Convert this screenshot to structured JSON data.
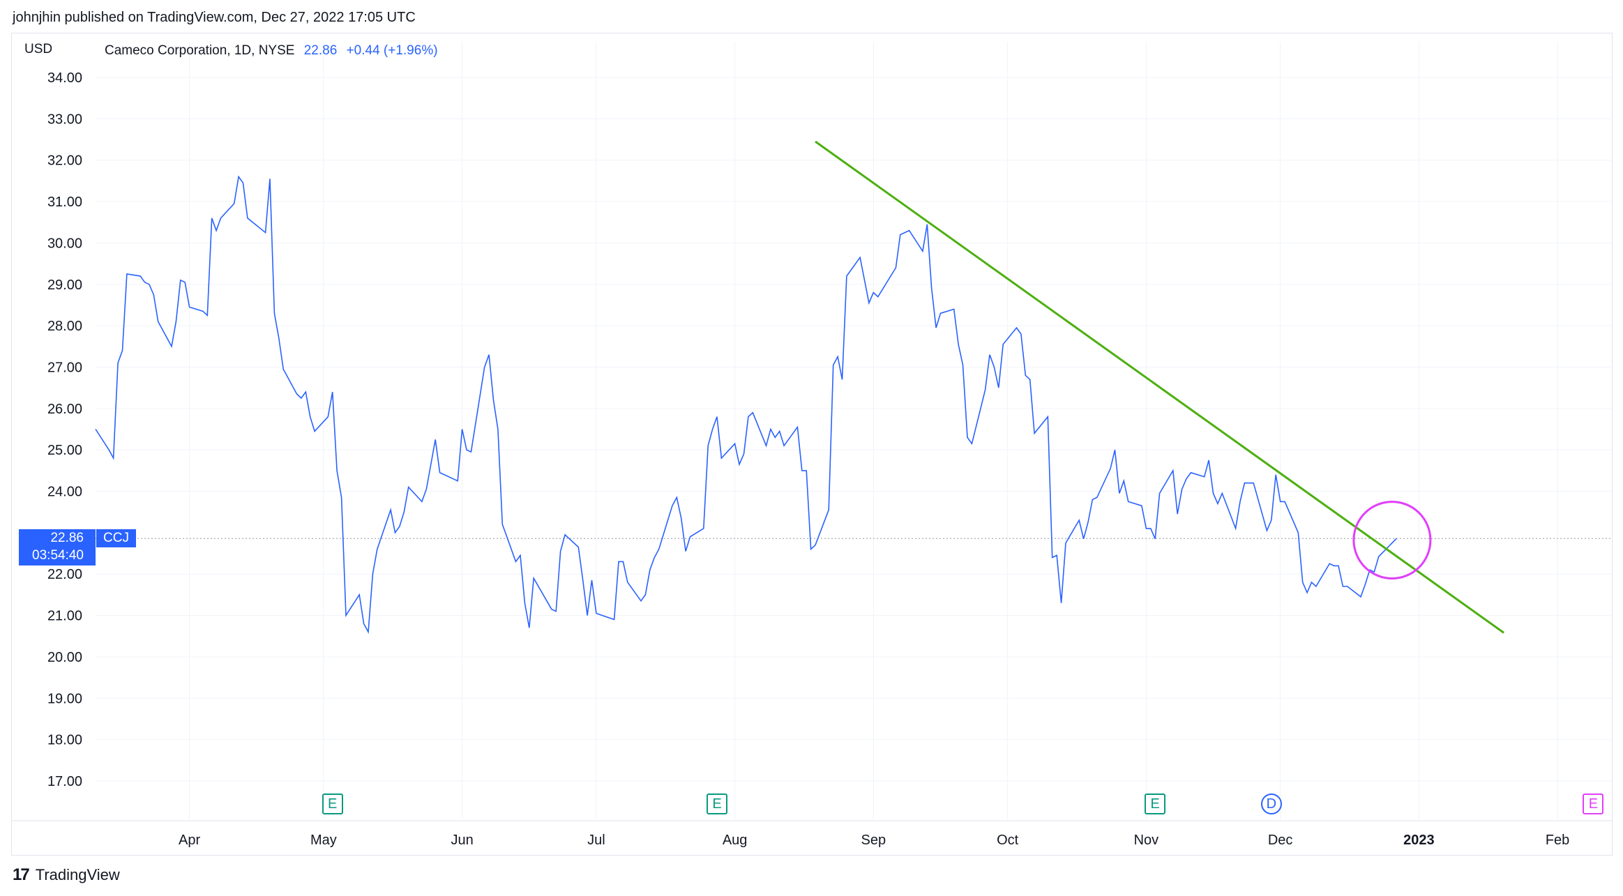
{
  "publisher": "johnjhin published on TradingView.com, Dec 27, 2022 17:05 UTC",
  "currency": "USD",
  "legend": {
    "name": "Cameco Corporation, 1D, NYSE",
    "value": "22.86",
    "change": "+0.44 (+1.96%)"
  },
  "price_tag": {
    "price": "22.86",
    "countdown": "03:54:40",
    "symbol": "CCJ"
  },
  "brand": {
    "text": "TradingView"
  },
  "events": [
    {
      "label": "E",
      "kind": "earnings",
      "date": "May 3"
    },
    {
      "label": "E",
      "kind": "earnings",
      "date": "Jul 28"
    },
    {
      "label": "E",
      "kind": "earnings",
      "date": "Nov 3"
    },
    {
      "label": "D",
      "kind": "dividend",
      "date": "Nov 29"
    },
    {
      "label": "E",
      "kind": "earnings-upcoming",
      "date": "Feb 9"
    }
  ],
  "colors": {
    "line": "#2962ff",
    "trendline": "#4caf10",
    "circle": "#e040fb",
    "grid": "#f0f3fa",
    "earnings": "#089981",
    "dividend": "#2962ff"
  },
  "chart_data": {
    "type": "line",
    "title": "Cameco Corporation, 1D, NYSE",
    "ylabel": "USD",
    "ylim": [
      16.4,
      34.6
    ],
    "yticks": [
      "34.00",
      "33.00",
      "32.00",
      "31.00",
      "30.00",
      "29.00",
      "28.00",
      "27.00",
      "26.00",
      "25.00",
      "24.00",
      "22.00",
      "21.00",
      "20.00",
      "19.00",
      "18.00",
      "17.00"
    ],
    "xticks": [
      {
        "label": "Apr",
        "date": "2022-04-01"
      },
      {
        "label": "May",
        "date": "2022-05-01"
      },
      {
        "label": "Jun",
        "date": "2022-06-01"
      },
      {
        "label": "Jul",
        "date": "2022-07-01"
      },
      {
        "label": "Aug",
        "date": "2022-08-01"
      },
      {
        "label": "Sep",
        "date": "2022-09-01"
      },
      {
        "label": "Oct",
        "date": "2022-10-01"
      },
      {
        "label": "Nov",
        "date": "2022-11-01"
      },
      {
        "label": "Dec",
        "date": "2022-12-01"
      },
      {
        "label": "2023",
        "date": "2023-01-01"
      },
      {
        "label": "Feb",
        "date": "2023-02-01"
      }
    ],
    "xlim": [
      "2022-03-11",
      "2023-02-13"
    ],
    "series": [
      {
        "x": [
          "2022-03-11",
          "2022-03-14",
          "2022-03-15",
          "2022-03-16",
          "2022-03-17",
          "2022-03-18",
          "2022-03-21",
          "2022-03-22",
          "2022-03-23",
          "2022-03-24",
          "2022-03-25",
          "2022-03-28",
          "2022-03-29",
          "2022-03-30",
          "2022-03-31",
          "2022-04-01",
          "2022-04-04",
          "2022-04-05",
          "2022-04-06",
          "2022-04-07",
          "2022-04-08",
          "2022-04-11",
          "2022-04-12",
          "2022-04-13",
          "2022-04-14",
          "2022-04-18",
          "2022-04-19",
          "2022-04-20",
          "2022-04-21",
          "2022-04-22",
          "2022-04-25",
          "2022-04-26",
          "2022-04-27",
          "2022-04-28",
          "2022-04-29",
          "2022-05-02",
          "2022-05-03",
          "2022-05-04",
          "2022-05-05",
          "2022-05-06",
          "2022-05-09",
          "2022-05-10",
          "2022-05-11",
          "2022-05-12",
          "2022-05-13",
          "2022-05-16",
          "2022-05-17",
          "2022-05-18",
          "2022-05-19",
          "2022-05-20",
          "2022-05-23",
          "2022-05-24",
          "2022-05-25",
          "2022-05-26",
          "2022-05-27",
          "2022-05-31",
          "2022-06-01",
          "2022-06-02",
          "2022-06-03",
          "2022-06-06",
          "2022-06-07",
          "2022-06-08",
          "2022-06-09",
          "2022-06-10",
          "2022-06-13",
          "2022-06-14",
          "2022-06-15",
          "2022-06-16",
          "2022-06-17",
          "2022-06-21",
          "2022-06-22",
          "2022-06-23",
          "2022-06-24",
          "2022-06-27",
          "2022-06-28",
          "2022-06-29",
          "2022-06-30",
          "2022-07-01",
          "2022-07-05",
          "2022-07-06",
          "2022-07-07",
          "2022-07-08",
          "2022-07-11",
          "2022-07-12",
          "2022-07-13",
          "2022-07-14",
          "2022-07-15",
          "2022-07-18",
          "2022-07-19",
          "2022-07-20",
          "2022-07-21",
          "2022-07-22",
          "2022-07-25",
          "2022-07-26",
          "2022-07-27",
          "2022-07-28",
          "2022-07-29",
          "2022-08-01",
          "2022-08-02",
          "2022-08-03",
          "2022-08-04",
          "2022-08-05",
          "2022-08-08",
          "2022-08-09",
          "2022-08-10",
          "2022-08-11",
          "2022-08-12",
          "2022-08-15",
          "2022-08-16",
          "2022-08-17",
          "2022-08-18",
          "2022-08-19",
          "2022-08-22",
          "2022-08-23",
          "2022-08-24",
          "2022-08-25",
          "2022-08-26",
          "2022-08-29",
          "2022-08-30",
          "2022-08-31",
          "2022-09-01",
          "2022-09-02",
          "2022-09-06",
          "2022-09-07",
          "2022-09-08",
          "2022-09-09",
          "2022-09-12",
          "2022-09-13",
          "2022-09-14",
          "2022-09-15",
          "2022-09-16",
          "2022-09-19",
          "2022-09-20",
          "2022-09-21",
          "2022-09-22",
          "2022-09-23",
          "2022-09-26",
          "2022-09-27",
          "2022-09-28",
          "2022-09-29",
          "2022-09-30",
          "2022-10-03",
          "2022-10-04",
          "2022-10-05",
          "2022-10-06",
          "2022-10-07",
          "2022-10-10",
          "2022-10-11",
          "2022-10-12",
          "2022-10-13",
          "2022-10-14",
          "2022-10-17",
          "2022-10-18",
          "2022-10-19",
          "2022-10-20",
          "2022-10-21",
          "2022-10-24",
          "2022-10-25",
          "2022-10-26",
          "2022-10-27",
          "2022-10-28",
          "2022-10-31",
          "2022-11-01",
          "2022-11-02",
          "2022-11-03",
          "2022-11-04",
          "2022-11-07",
          "2022-11-08",
          "2022-11-09",
          "2022-11-10",
          "2022-11-11",
          "2022-11-14",
          "2022-11-15",
          "2022-11-16",
          "2022-11-17",
          "2022-11-18",
          "2022-11-21",
          "2022-11-22",
          "2022-11-23",
          "2022-11-25",
          "2022-11-28",
          "2022-11-29",
          "2022-11-30",
          "2022-12-01",
          "2022-12-02",
          "2022-12-05",
          "2022-12-06",
          "2022-12-07",
          "2022-12-08",
          "2022-12-09",
          "2022-12-12",
          "2022-12-13",
          "2022-12-14",
          "2022-12-15",
          "2022-12-16",
          "2022-12-19",
          "2022-12-20",
          "2022-12-21",
          "2022-12-22",
          "2022-12-23",
          "2022-12-27"
        ],
        "values": [
          25.5,
          25.0,
          24.8,
          27.1,
          27.4,
          29.25,
          29.2,
          29.05,
          29.0,
          28.75,
          28.1,
          27.5,
          28.1,
          29.1,
          29.05,
          28.45,
          28.35,
          28.25,
          30.6,
          30.3,
          30.6,
          30.95,
          31.6,
          31.45,
          30.6,
          30.25,
          31.55,
          28.3,
          27.7,
          26.95,
          26.35,
          26.25,
          26.4,
          25.8,
          25.45,
          25.8,
          26.4,
          24.5,
          23.85,
          21.0,
          21.5,
          20.8,
          20.6,
          22.0,
          22.6,
          23.55,
          23.0,
          23.15,
          23.5,
          24.1,
          23.75,
          24.05,
          24.65,
          25.25,
          24.45,
          24.25,
          25.5,
          25.0,
          24.95,
          27.0,
          27.3,
          26.2,
          25.5,
          23.2,
          22.3,
          22.45,
          21.3,
          20.7,
          21.9,
          21.15,
          21.1,
          22.55,
          22.95,
          22.65,
          21.85,
          21.0,
          21.85,
          21.05,
          20.9,
          22.3,
          22.3,
          21.8,
          21.35,
          21.5,
          22.1,
          22.4,
          22.6,
          23.65,
          23.85,
          23.35,
          22.55,
          22.9,
          23.1,
          25.1,
          25.5,
          25.8,
          24.8,
          25.15,
          24.65,
          24.9,
          25.8,
          25.9,
          25.1,
          25.5,
          25.3,
          25.45,
          25.1,
          25.55,
          24.5,
          24.5,
          22.6,
          22.7,
          23.55,
          27.05,
          27.25,
          26.7,
          29.2,
          29.65,
          29.1,
          28.55,
          28.8,
          28.7,
          29.4,
          30.2,
          30.25,
          30.3,
          29.8,
          30.45,
          28.9,
          27.95,
          28.3,
          28.4,
          27.55,
          27.05,
          25.3,
          25.15,
          26.45,
          27.3,
          27.0,
          26.5,
          27.55,
          27.95,
          27.8,
          26.8,
          26.7,
          25.4,
          25.8,
          22.4,
          22.45,
          21.3,
          22.75,
          23.3,
          22.85,
          23.25,
          23.8,
          23.85,
          24.55,
          25.0,
          23.95,
          24.25,
          23.75,
          23.65,
          23.1,
          23.1,
          22.85,
          23.95,
          24.5,
          23.45,
          24.05,
          24.3,
          24.45,
          24.35,
          24.75,
          23.95,
          23.7,
          23.95,
          23.1,
          23.75,
          24.2,
          24.2,
          23.05,
          23.3,
          24.4,
          23.75,
          23.75,
          23.0,
          21.8,
          21.55,
          21.8,
          21.7,
          22.25,
          22.2,
          22.2,
          21.7,
          21.7,
          21.45,
          21.75,
          22.1,
          22.05,
          22.42,
          22.86
        ]
      }
    ],
    "annotations": [
      {
        "type": "trendline",
        "from": {
          "date": "2022-08-19",
          "value": 32.45
        },
        "to": {
          "date": "2023-01-20",
          "value": 20.58
        }
      },
      {
        "type": "circle",
        "center": {
          "date": "2022-12-26",
          "value": 22.82
        }
      }
    ],
    "last_value": 22.86
  }
}
